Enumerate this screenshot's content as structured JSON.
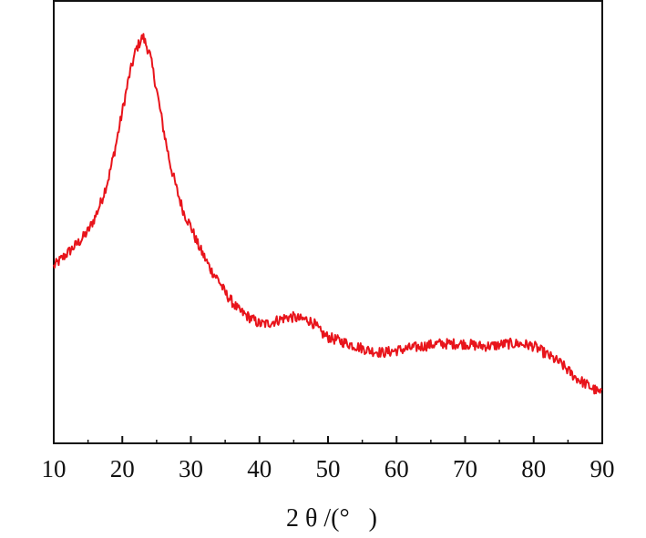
{
  "chart_data": {
    "type": "line",
    "title": "",
    "xlabel": "2 θ /(°   )",
    "ylabel": "",
    "xlim": [
      10,
      90
    ],
    "ylim": [
      0,
      100
    ],
    "xticks": [
      "10",
      "20",
      "30",
      "40",
      "50",
      "60",
      "70",
      "80",
      "90"
    ],
    "grid": false,
    "legend": "none",
    "series": [
      {
        "color": "#e8141b",
        "noise": 1.2,
        "x": [
          10,
          12,
          14,
          15,
          16,
          17,
          18,
          19,
          20,
          21,
          22,
          23,
          24,
          25,
          26,
          27,
          28,
          29,
          30,
          31,
          32,
          33,
          34,
          35,
          36,
          37,
          38,
          39,
          40,
          41,
          42,
          43,
          44,
          45,
          46,
          47,
          48,
          49,
          50,
          52,
          54,
          56,
          58,
          60,
          62,
          64,
          66,
          68,
          70,
          72,
          74,
          76,
          78,
          80,
          82,
          84,
          86,
          88,
          90
        ],
        "y": [
          40,
          43,
          46,
          48,
          51,
          55,
          60,
          67,
          75,
          83,
          89,
          92,
          88,
          80,
          71,
          63,
          57,
          52,
          49,
          45,
          42,
          39,
          37,
          34,
          32,
          30,
          29,
          28,
          27,
          27,
          27.5,
          28,
          28.5,
          28.5,
          28,
          28,
          27,
          25,
          24,
          23,
          22,
          21,
          20.5,
          21,
          21.5,
          22,
          22.5,
          22.5,
          22.5,
          22,
          22,
          22.5,
          22.5,
          22,
          20,
          18,
          15,
          13,
          11
        ]
      }
    ]
  }
}
